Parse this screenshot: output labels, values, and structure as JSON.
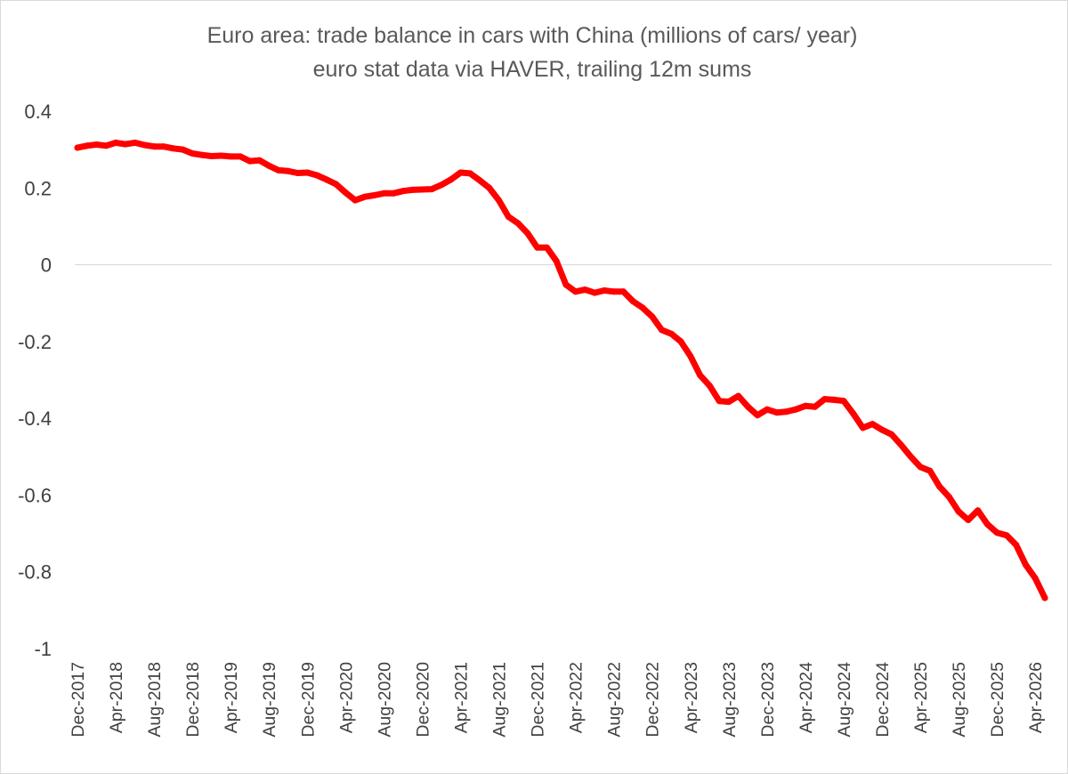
{
  "chart_data": {
    "type": "line",
    "title": "Euro area: trade balance in cars with China (millions of cars/ year)",
    "subtitle": "euro stat data via HAVER, trailing 12m sums",
    "xlabel": "",
    "ylabel": "",
    "ylim": [
      -1,
      0.4
    ],
    "yticks": [
      "0.4",
      "0.2",
      "0",
      "-0.2",
      "-0.4",
      "-0.6",
      "-0.8",
      "-1"
    ],
    "xtick_labels": [
      "Dec-2017",
      "Apr-2018",
      "Aug-2018",
      "Dec-2018",
      "Apr-2019",
      "Aug-2019",
      "Dec-2019",
      "Apr-2020",
      "Aug-2020",
      "Dec-2020",
      "Apr-2021",
      "Aug-2021",
      "Dec-2021",
      "Apr-2022",
      "Aug-2022",
      "Dec-2022",
      "Apr-2023",
      "Aug-2023",
      "Dec-2023",
      "Apr-2024",
      "Aug-2024",
      "Dec-2024",
      "Apr-2025",
      "Aug-2025",
      "Dec-2025",
      "Apr-2026"
    ],
    "grid": "zero line only",
    "legend": "none",
    "series": [
      {
        "color": "#ff0000",
        "x_start": "Dec-2017",
        "x_step": "1 month",
        "values": [
          0.305,
          0.31,
          0.313,
          0.31,
          0.318,
          0.314,
          0.318,
          0.312,
          0.308,
          0.308,
          0.303,
          0.3,
          0.29,
          0.286,
          0.283,
          0.284,
          0.282,
          0.282,
          0.27,
          0.272,
          0.258,
          0.246,
          0.244,
          0.239,
          0.24,
          0.233,
          0.222,
          0.21,
          0.188,
          0.168,
          0.177,
          0.181,
          0.186,
          0.186,
          0.192,
          0.195,
          0.196,
          0.197,
          0.208,
          0.222,
          0.24,
          0.238,
          0.22,
          0.2,
          0.168,
          0.125,
          0.108,
          0.082,
          0.045,
          0.045,
          0.01,
          -0.052,
          -0.07,
          -0.065,
          -0.073,
          -0.067,
          -0.07,
          -0.07,
          -0.095,
          -0.112,
          -0.135,
          -0.17,
          -0.18,
          -0.2,
          -0.238,
          -0.288,
          -0.315,
          -0.355,
          -0.357,
          -0.342,
          -0.37,
          -0.392,
          -0.377,
          -0.385,
          -0.383,
          -0.377,
          -0.368,
          -0.37,
          -0.35,
          -0.352,
          -0.355,
          -0.388,
          -0.425,
          -0.415,
          -0.43,
          -0.442,
          -0.47,
          -0.5,
          -0.527,
          -0.537,
          -0.578,
          -0.605,
          -0.643,
          -0.665,
          -0.64,
          -0.676,
          -0.698,
          -0.705,
          -0.73,
          -0.782,
          -0.817,
          -0.868
        ]
      }
    ]
  }
}
